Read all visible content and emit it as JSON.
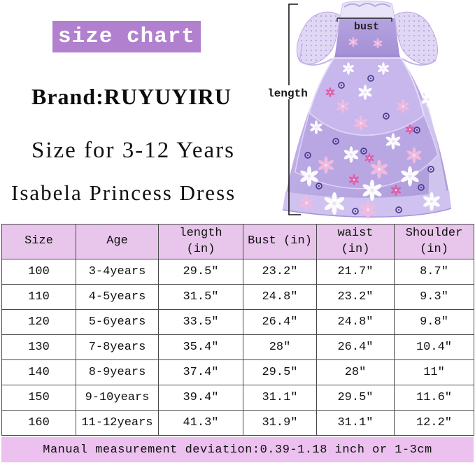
{
  "banner": {
    "label": "size chart"
  },
  "headings": {
    "brand": "Brand:RUYUYIRU",
    "size_range": "Size for 3-12 Years",
    "product": "Isabela Princess Dress"
  },
  "figure": {
    "bust_label": "bust",
    "length_label": "length"
  },
  "chart_data": {
    "type": "table",
    "title": "size chart",
    "columns": [
      "Size",
      "Age",
      "length (in)",
      "Bust (in)",
      "waist (in)",
      "Shoulder (in)"
    ],
    "rows": [
      [
        "100",
        "3-4years",
        "29.5″",
        "23.2″",
        "21.7″",
        "8.7″"
      ],
      [
        "110",
        "4-5years",
        "31.5″",
        "24.8″",
        "23.2″",
        "9.3″"
      ],
      [
        "120",
        "5-6years",
        "33.5″",
        "26.4″",
        "24.8″",
        "9.8″"
      ],
      [
        "130",
        "7-8years",
        "35.4″",
        "28″",
        "26.4″",
        "10.4″"
      ],
      [
        "140",
        "8-9years",
        "37.4″",
        "29.5″",
        "28″",
        "11″"
      ],
      [
        "150",
        "9-10years",
        "39.4″",
        "31.1″",
        "29.5″",
        "11.6″"
      ],
      [
        "160",
        "11-12years",
        "41.3″",
        "31.9″",
        "31.1″",
        "12.2″"
      ]
    ],
    "footnote": "Manual measurement deviation:0.39-1.18 inch or 1-3cm"
  },
  "footer": {
    "note": "Manual measurement deviation:0.39-1.18 inch or 1-3cm"
  },
  "colors": {
    "accent_banner": "#b180ce",
    "table_header_bg": "#e8c5eb",
    "footer_bg": "#ecc0ef",
    "border_color": "#4a4a4a",
    "dress_purple": "#b9a7e3"
  }
}
